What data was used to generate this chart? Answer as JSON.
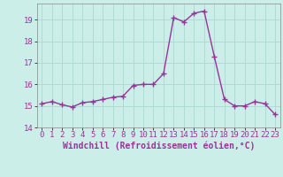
{
  "x": [
    0,
    1,
    2,
    3,
    4,
    5,
    6,
    7,
    8,
    9,
    10,
    11,
    12,
    13,
    14,
    15,
    16,
    17,
    18,
    19,
    20,
    21,
    22,
    23
  ],
  "y": [
    15.1,
    15.2,
    15.05,
    14.95,
    15.15,
    15.2,
    15.3,
    15.4,
    15.45,
    15.95,
    16.0,
    16.0,
    16.5,
    19.1,
    18.9,
    19.3,
    19.4,
    17.3,
    15.3,
    15.0,
    15.0,
    15.2,
    15.1,
    14.6
  ],
  "line_color": "#993399",
  "marker": "+",
  "marker_size": 4,
  "marker_color": "#993399",
  "bg_color": "#cceee8",
  "grid_color": "#aad8d2",
  "xlabel": "Windchill (Refroidissement éolien,°C)",
  "xlim": [
    -0.5,
    23.5
  ],
  "ylim": [
    14,
    19.75
  ],
  "yticks": [
    14,
    15,
    16,
    17,
    18,
    19
  ],
  "xticks": [
    0,
    1,
    2,
    3,
    4,
    5,
    6,
    7,
    8,
    9,
    10,
    11,
    12,
    13,
    14,
    15,
    16,
    17,
    18,
    19,
    20,
    21,
    22,
    23
  ],
  "tick_fontsize": 6.5,
  "xlabel_fontsize": 7,
  "linewidth": 1.0
}
